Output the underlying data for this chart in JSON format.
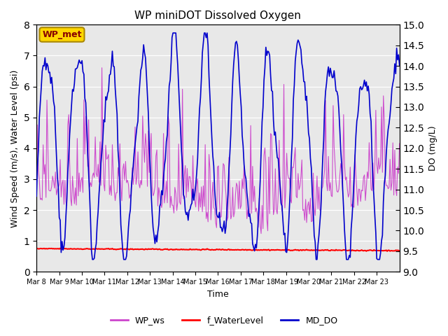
{
  "title": "WP miniDOT Dissolved Oxygen",
  "xlabel": "Time",
  "ylabel_left": "Wind Speed (m/s), Water Level (psi)",
  "ylabel_right": "DO (mg/L)",
  "ylim_left": [
    0.0,
    8.0
  ],
  "ylim_right": [
    9.0,
    15.0
  ],
  "yticks_left": [
    0.0,
    1.0,
    2.0,
    3.0,
    4.0,
    5.0,
    6.0,
    7.0,
    8.0
  ],
  "yticks_right": [
    9.0,
    9.5,
    10.0,
    10.5,
    11.0,
    11.5,
    12.0,
    12.5,
    13.0,
    13.5,
    14.0,
    14.5,
    15.0
  ],
  "xtick_labels": [
    "Mar 8",
    "Mar 9",
    "Mar 10",
    "Mar 11",
    "Mar 12",
    "Mar 13",
    "Mar 14",
    "Mar 15",
    "Mar 16",
    "Mar 17",
    "Mar 18",
    "Mar 19",
    "Mar 20",
    "Mar 21",
    "Mar 22",
    "Mar 23"
  ],
  "color_ws": "#CC44CC",
  "color_wl": "#FF0000",
  "color_do": "#0000CC",
  "background_color": "#E8E8E8",
  "legend_box_color": "#FFD700",
  "legend_box_edge_color": "#AA8800",
  "legend_box_text": "WP_met",
  "legend_box_text_color": "#880000",
  "seed": 42
}
